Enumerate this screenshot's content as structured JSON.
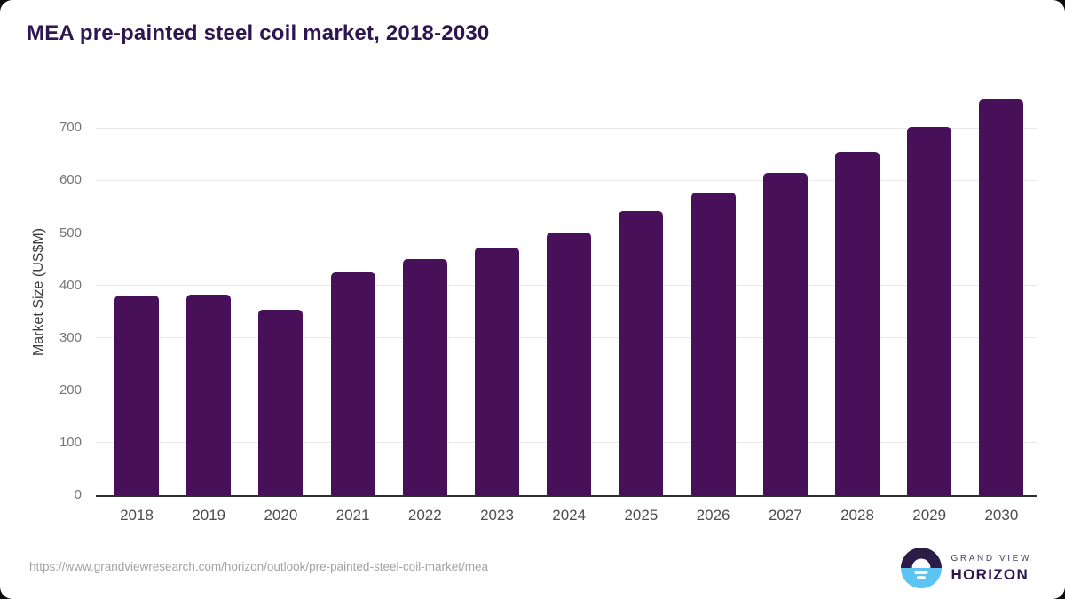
{
  "chart_data": {
    "type": "bar",
    "title": "MEA pre-painted steel coil market, 2018-2030",
    "xlabel": "",
    "ylabel": "Market Size (US$M)",
    "categories": [
      "2018",
      "2019",
      "2020",
      "2021",
      "2022",
      "2023",
      "2024",
      "2025",
      "2026",
      "2027",
      "2028",
      "2029",
      "2030"
    ],
    "values": [
      381,
      383,
      354,
      425,
      450,
      472,
      501,
      541,
      577,
      614,
      655,
      703,
      755
    ],
    "yticks": [
      0,
      100,
      200,
      300,
      400,
      500,
      600,
      700
    ],
    "ylim": [
      0,
      775
    ],
    "grid": "horizontal",
    "legend": "none"
  },
  "footer": {
    "source_url": "https://www.grandviewresearch.com/horizon/outlook/pre-painted-steel-coil-market/mea",
    "logo_top": "GRAND VIEW",
    "logo_bottom": "HORIZON"
  },
  "colors": {
    "bar": "#481059",
    "title": "#2d1650",
    "y_tick": "#757575",
    "x_tick": "#4d4d4d",
    "gridline": "#e9e9e9",
    "axis_line": "#2e2e2e",
    "source_url": "#a3a3a3",
    "logo_dark": "#2a1c47",
    "logo_blue": "#5cc4f1"
  }
}
